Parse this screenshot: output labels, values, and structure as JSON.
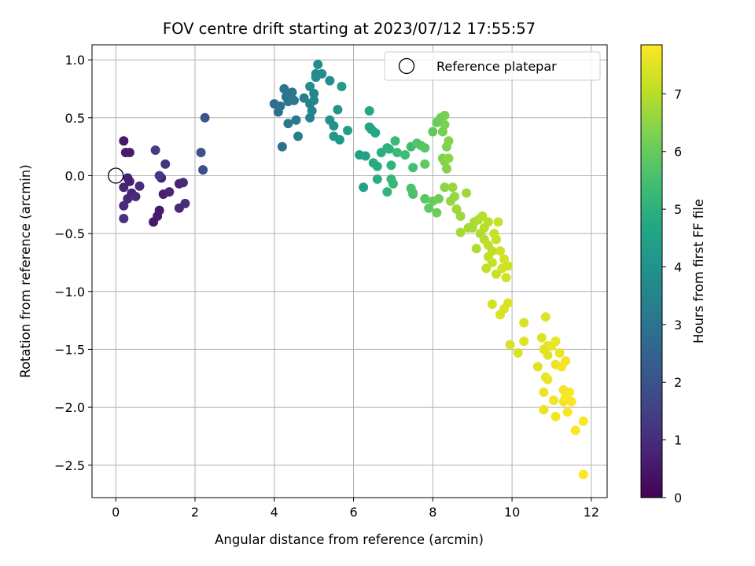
{
  "chart_data": {
    "type": "scatter",
    "title": "FOV centre drift starting at 2023/07/12 17:55:57",
    "xlabel": "Angular distance from reference (arcmin)",
    "ylabel": "Rotation from reference (arcmin)",
    "xlim": [
      -0.6,
      12.4
    ],
    "ylim": [
      -2.78,
      1.13
    ],
    "xticks": [
      0,
      2,
      4,
      6,
      8,
      10,
      12
    ],
    "yticks": [
      1.0,
      0.5,
      0.0,
      -0.5,
      -1.0,
      -1.5,
      -2.0,
      -2.5
    ],
    "ytick_labels": [
      "1.0",
      "0.5",
      "0.0",
      "−0.5",
      "−1.0",
      "−1.5",
      "−2.0",
      "−2.5"
    ],
    "grid": true,
    "colormap": "viridis",
    "colorbar": {
      "label": "Hours from first FF file",
      "range": [
        0,
        7.85
      ],
      "ticks": [
        0,
        1,
        2,
        3,
        4,
        5,
        6,
        7
      ]
    },
    "legend": {
      "placement": "top-right",
      "entries": [
        {
          "label": "Reference platepar",
          "marker": "open-circle"
        }
      ]
    },
    "reference_point": [
      0,
      0
    ],
    "points": [
      [
        0.2,
        0.3,
        0.5
      ],
      [
        0.25,
        0.2,
        0.6
      ],
      [
        0.35,
        0.2,
        0.6
      ],
      [
        0.3,
        -0.02,
        0.7
      ],
      [
        0.35,
        -0.05,
        0.7
      ],
      [
        0.2,
        -0.1,
        0.8
      ],
      [
        0.4,
        -0.15,
        0.8
      ],
      [
        0.3,
        -0.2,
        0.9
      ],
      [
        0.2,
        -0.26,
        0.9
      ],
      [
        0.5,
        -0.18,
        1.0
      ],
      [
        0.6,
        -0.09,
        1.0
      ],
      [
        0.2,
        -0.37,
        1.1
      ],
      [
        0.95,
        -0.4,
        0.5
      ],
      [
        1.05,
        -0.35,
        0.6
      ],
      [
        1.1,
        -0.3,
        0.6
      ],
      [
        1.15,
        -0.02,
        0.7
      ],
      [
        1.2,
        -0.16,
        0.7
      ],
      [
        1.35,
        -0.14,
        0.8
      ],
      [
        1.6,
        -0.07,
        0.8
      ],
      [
        1.7,
        -0.06,
        0.9
      ],
      [
        1.6,
        -0.28,
        0.9
      ],
      [
        1.75,
        -0.24,
        1.0
      ],
      [
        1.25,
        0.1,
        1.2
      ],
      [
        1.1,
        0.0,
        1.3
      ],
      [
        1.0,
        0.22,
        1.4
      ],
      [
        2.2,
        0.05,
        1.9
      ],
      [
        2.15,
        0.2,
        2.0
      ],
      [
        2.25,
        0.5,
        2.1
      ],
      [
        4.0,
        0.62,
        2.8
      ],
      [
        4.1,
        0.55,
        2.9
      ],
      [
        4.15,
        0.6,
        2.9
      ],
      [
        4.2,
        0.25,
        2.9
      ],
      [
        4.3,
        0.68,
        3.0
      ],
      [
        4.25,
        0.75,
        3.0
      ],
      [
        4.35,
        0.64,
        3.1
      ],
      [
        4.45,
        0.72,
        3.1
      ],
      [
        4.5,
        0.65,
        3.1
      ],
      [
        4.35,
        0.45,
        3.2
      ],
      [
        4.55,
        0.48,
        3.2
      ],
      [
        4.6,
        0.34,
        3.3
      ],
      [
        4.75,
        0.67,
        3.3
      ],
      [
        4.9,
        0.5,
        3.4
      ],
      [
        4.95,
        0.56,
        3.5
      ],
      [
        4.9,
        0.62,
        3.5
      ],
      [
        5.0,
        0.65,
        3.6
      ],
      [
        5.0,
        0.71,
        3.6
      ],
      [
        4.9,
        0.77,
        3.7
      ],
      [
        5.05,
        0.88,
        3.7
      ],
      [
        5.1,
        0.96,
        3.8
      ],
      [
        5.2,
        0.88,
        3.8
      ],
      [
        5.05,
        0.85,
        3.8
      ],
      [
        5.4,
        0.82,
        3.9
      ],
      [
        5.4,
        0.48,
        4.0
      ],
      [
        5.5,
        0.43,
        4.0
      ],
      [
        5.6,
        0.57,
        4.1
      ],
      [
        5.5,
        0.34,
        4.2
      ],
      [
        5.65,
        0.31,
        4.2
      ],
      [
        5.7,
        0.77,
        4.3
      ],
      [
        5.85,
        0.39,
        4.4
      ],
      [
        6.15,
        0.18,
        4.4
      ],
      [
        6.25,
        -0.1,
        4.5
      ],
      [
        6.3,
        0.17,
        4.5
      ],
      [
        6.4,
        0.42,
        4.6
      ],
      [
        6.45,
        0.4,
        4.6
      ],
      [
        6.4,
        0.56,
        4.7
      ],
      [
        6.55,
        0.37,
        4.7
      ],
      [
        6.5,
        0.11,
        4.8
      ],
      [
        6.6,
        0.08,
        4.8
      ],
      [
        6.6,
        -0.03,
        4.9
      ],
      [
        6.7,
        0.2,
        4.9
      ],
      [
        6.85,
        0.24,
        5.0
      ],
      [
        6.9,
        0.23,
        5.0
      ],
      [
        6.85,
        -0.14,
        5.1
      ],
      [
        6.95,
        0.09,
        5.1
      ],
      [
        6.95,
        -0.03,
        5.2
      ],
      [
        7.0,
        -0.07,
        5.2
      ],
      [
        7.05,
        0.3,
        5.3
      ],
      [
        7.1,
        0.2,
        5.3
      ],
      [
        7.3,
        0.18,
        5.4
      ],
      [
        7.45,
        0.25,
        5.4
      ],
      [
        7.5,
        0.07,
        5.5
      ],
      [
        7.5,
        -0.15,
        5.5
      ],
      [
        7.45,
        -0.11,
        5.6
      ],
      [
        7.5,
        -0.16,
        5.6
      ],
      [
        7.6,
        0.28,
        5.7
      ],
      [
        7.7,
        0.26,
        5.7
      ],
      [
        7.8,
        0.24,
        5.8
      ],
      [
        7.8,
        -0.2,
        5.8
      ],
      [
        7.8,
        0.1,
        5.9
      ],
      [
        7.9,
        -0.28,
        5.9
      ],
      [
        8.0,
        0.38,
        5.9
      ],
      [
        8.0,
        -0.22,
        6.0
      ],
      [
        8.1,
        0.46,
        6.0
      ],
      [
        8.1,
        -0.32,
        6.1
      ],
      [
        8.15,
        -0.2,
        6.1
      ],
      [
        8.2,
        0.5,
        6.1
      ],
      [
        8.3,
        0.52,
        6.2
      ],
      [
        8.25,
        0.38,
        6.2
      ],
      [
        8.3,
        0.44,
        6.3
      ],
      [
        8.35,
        0.25,
        6.3
      ],
      [
        8.25,
        0.15,
        6.3
      ],
      [
        8.3,
        0.12,
        6.4
      ],
      [
        8.35,
        0.06,
        6.4
      ],
      [
        8.4,
        0.3,
        6.4
      ],
      [
        8.4,
        0.15,
        6.5
      ],
      [
        8.3,
        -0.1,
        6.5
      ],
      [
        8.45,
        -0.22,
        6.6
      ],
      [
        8.5,
        -0.1,
        6.6
      ],
      [
        8.55,
        -0.18,
        6.6
      ],
      [
        8.6,
        -0.29,
        6.7
      ],
      [
        8.7,
        -0.35,
        6.7
      ],
      [
        8.85,
        -0.15,
        6.7
      ],
      [
        8.9,
        -0.45,
        6.8
      ],
      [
        8.7,
        -0.49,
        6.8
      ],
      [
        9.0,
        -0.45,
        6.8
      ],
      [
        9.05,
        -0.4,
        6.8
      ],
      [
        9.1,
        -0.63,
        6.9
      ],
      [
        9.2,
        -0.5,
        6.9
      ],
      [
        9.15,
        -0.38,
        6.9
      ],
      [
        9.25,
        -0.35,
        7.0
      ],
      [
        9.3,
        -0.55,
        7.0
      ],
      [
        9.3,
        -0.45,
        7.0
      ],
      [
        9.4,
        -0.4,
        7.0
      ],
      [
        9.4,
        -0.6,
        7.1
      ],
      [
        9.4,
        -0.7,
        7.1
      ],
      [
        9.35,
        -0.8,
        7.1
      ],
      [
        9.5,
        -0.65,
        7.1
      ],
      [
        9.5,
        -0.75,
        7.2
      ],
      [
        9.55,
        -0.5,
        7.2
      ],
      [
        9.6,
        -0.55,
        7.2
      ],
      [
        9.65,
        -0.4,
        7.2
      ],
      [
        9.6,
        -0.85,
        7.2
      ],
      [
        9.7,
        -0.65,
        7.3
      ],
      [
        9.8,
        -0.72,
        7.3
      ],
      [
        9.75,
        -0.8,
        7.3
      ],
      [
        9.85,
        -0.88,
        7.3
      ],
      [
        9.9,
        -0.78,
        7.3
      ],
      [
        9.5,
        -1.11,
        7.3
      ],
      [
        9.7,
        -1.2,
        7.4
      ],
      [
        9.8,
        -1.15,
        7.4
      ],
      [
        9.9,
        -1.1,
        7.4
      ],
      [
        9.95,
        -1.46,
        7.4
      ],
      [
        10.15,
        -1.53,
        7.4
      ],
      [
        10.3,
        -1.27,
        7.4
      ],
      [
        10.3,
        -1.43,
        7.5
      ],
      [
        10.75,
        -1.4,
        7.5
      ],
      [
        10.65,
        -1.65,
        7.5
      ],
      [
        10.8,
        -1.5,
        7.5
      ],
      [
        10.85,
        -1.22,
        7.5
      ],
      [
        10.9,
        -1.47,
        7.5
      ],
      [
        10.9,
        -1.55,
        7.5
      ],
      [
        10.85,
        -1.74,
        7.6
      ],
      [
        10.8,
        -1.87,
        7.6
      ],
      [
        10.9,
        -1.76,
        7.6
      ],
      [
        10.8,
        -2.02,
        7.6
      ],
      [
        11.0,
        -1.47,
        7.6
      ],
      [
        11.1,
        -1.43,
        7.6
      ],
      [
        11.2,
        -1.53,
        7.6
      ],
      [
        11.1,
        -1.63,
        7.6
      ],
      [
        11.05,
        -1.94,
        7.7
      ],
      [
        11.1,
        -2.08,
        7.7
      ],
      [
        11.25,
        -1.65,
        7.7
      ],
      [
        11.3,
        -1.85,
        7.7
      ],
      [
        11.35,
        -1.6,
        7.7
      ],
      [
        11.3,
        -1.95,
        7.7
      ],
      [
        11.35,
        -1.92,
        7.8
      ],
      [
        11.4,
        -2.04,
        7.8
      ],
      [
        11.45,
        -1.87,
        7.8
      ],
      [
        11.5,
        -1.95,
        7.8
      ],
      [
        11.6,
        -2.2,
        7.8
      ],
      [
        11.8,
        -2.12,
        7.8
      ],
      [
        11.8,
        -2.58,
        7.85
      ]
    ]
  }
}
